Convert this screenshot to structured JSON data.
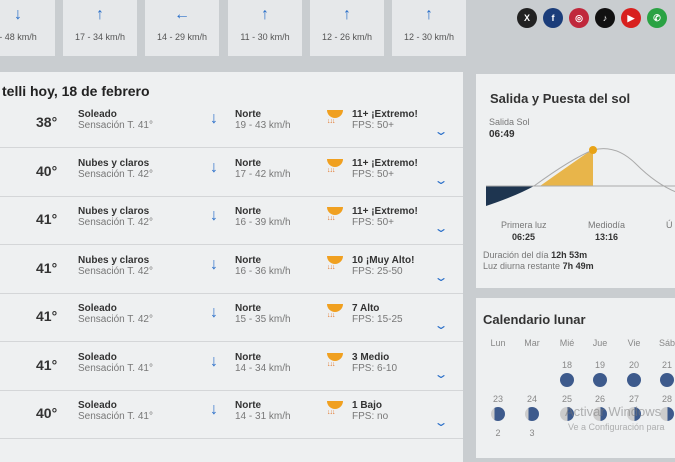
{
  "wind_strip": [
    {
      "icon": "wind-arrow-south-icon",
      "speed": "- 48 km/h"
    },
    {
      "icon": "wind-arrow-north-icon",
      "speed": "17 - 34 km/h"
    },
    {
      "icon": "wind-arrow-west-icon",
      "speed": "14 - 29 km/h"
    },
    {
      "icon": "wind-arrow-north-icon",
      "speed": "11 - 30 km/h"
    },
    {
      "icon": "wind-arrow-north-icon",
      "speed": "12 - 26 km/h"
    },
    {
      "icon": "wind-arrow-north-icon",
      "speed": "12 - 30 km/h"
    }
  ],
  "social": [
    {
      "name": "x",
      "glyph": "X",
      "color": "#222222"
    },
    {
      "name": "facebook",
      "glyph": "f",
      "color": "#1b3d7a"
    },
    {
      "name": "instagram",
      "glyph": "◎",
      "color": "#c0283c"
    },
    {
      "name": "tiktok",
      "glyph": "♪",
      "color": "#111111"
    },
    {
      "name": "youtube",
      "glyph": "▶",
      "color": "#d8201e"
    },
    {
      "name": "whatsapp",
      "glyph": "✆",
      "color": "#2aa243"
    }
  ],
  "main": {
    "title": "telli hoy, 18 de febrero",
    "rows": [
      {
        "temp": "38°",
        "cond": "Soleado",
        "feel": "Sensación T. 41°",
        "wind_dir": "Norte",
        "wind": "19 - 43 km/h",
        "uv": "11+ ¡Extremo!",
        "fps": "FPS: 50+"
      },
      {
        "temp": "40°",
        "cond": "Nubes y claros",
        "feel": "Sensación T. 42°",
        "wind_dir": "Norte",
        "wind": "17 - 42 km/h",
        "uv": "11+ ¡Extremo!",
        "fps": "FPS: 50+"
      },
      {
        "temp": "41°",
        "cond": "Nubes y claros",
        "feel": "Sensación T. 42°",
        "wind_dir": "Norte",
        "wind": "16 - 39 km/h",
        "uv": "11+ ¡Extremo!",
        "fps": "FPS: 50+"
      },
      {
        "temp": "41°",
        "cond": "Nubes y claros",
        "feel": "Sensación T. 42°",
        "wind_dir": "Norte",
        "wind": "16 - 36 km/h",
        "uv": "10 ¡Muy Alto!",
        "fps": "FPS: 25-50"
      },
      {
        "temp": "41°",
        "cond": "Soleado",
        "feel": "Sensación T. 42°",
        "wind_dir": "Norte",
        "wind": "15 - 35 km/h",
        "uv": "7 Alto",
        "fps": "FPS: 15-25"
      },
      {
        "temp": "41°",
        "cond": "Soleado",
        "feel": "Sensación T. 41°",
        "wind_dir": "Norte",
        "wind": "14 - 34 km/h",
        "uv": "3 Medio",
        "fps": "FPS: 6-10"
      },
      {
        "temp": "40°",
        "cond": "Soleado",
        "feel": "Sensación T. 41°",
        "wind_dir": "Norte",
        "wind": "14 - 31 km/h",
        "uv": "1 Bajo",
        "fps": "FPS: no"
      }
    ]
  },
  "sun": {
    "title": "Salida y Puesta del sol",
    "sunrise_label": "Salida Sol",
    "sunrise": "06:49",
    "first_light_label": "Primera luz",
    "first_light": "06:25",
    "noon_label": "Mediodía",
    "noon": "13:16",
    "last_label": "Ú",
    "duration_label": "Duración del día",
    "duration": "12h 53m",
    "remaining_label": "Luz diurna restante",
    "remaining": "7h 49m",
    "colors": {
      "day": "#e8b54a",
      "night": "#1e3550",
      "sun": "#e8a317"
    }
  },
  "moon": {
    "title": "Calendario lunar",
    "days": [
      "Lun",
      "Mar",
      "Mié",
      "Jue",
      "Vie",
      "Sáb"
    ],
    "weeks": [
      [
        "",
        "",
        "18",
        "19",
        "20",
        "21"
      ],
      [
        "23",
        "24",
        "25",
        "26",
        "27",
        "28"
      ],
      [
        "2",
        "3",
        "",
        "",
        "",
        ""
      ]
    ]
  },
  "watermark": {
    "line1": "Activar Windows",
    "line2": "Ve a Configuración para"
  }
}
